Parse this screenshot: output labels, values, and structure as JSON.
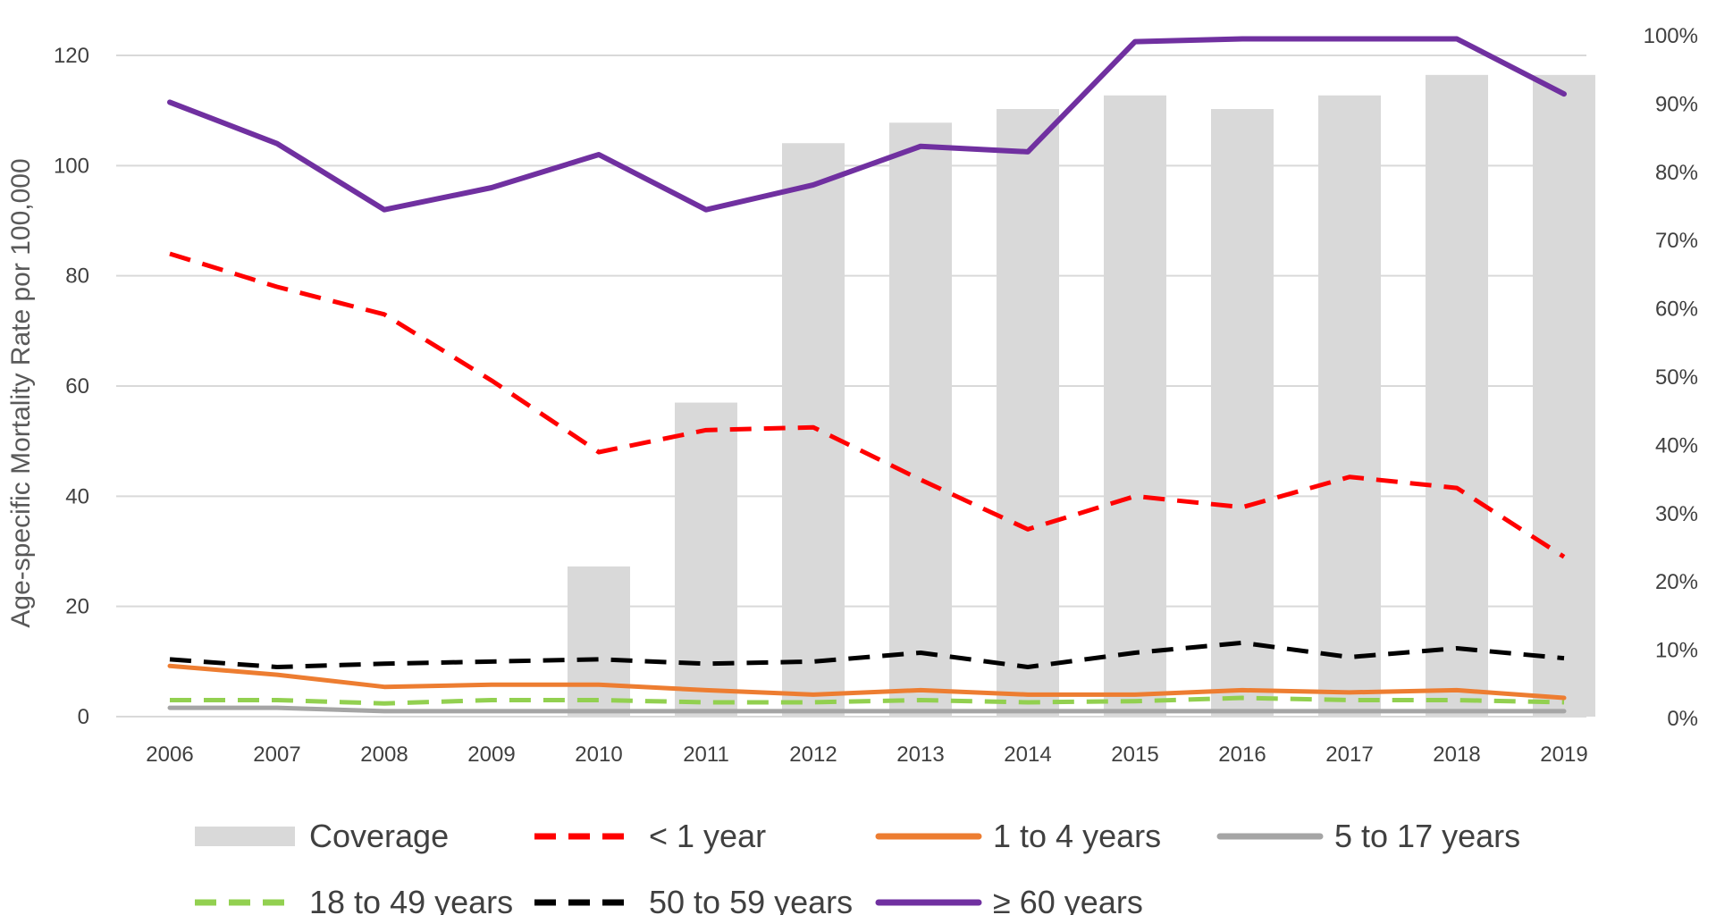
{
  "chart_data": {
    "type": "line",
    "title": "",
    "xlabel": "",
    "ylabel": "Age-specific Mortality Rate por 100,000",
    "x": [
      "2006",
      "2007",
      "2008",
      "2009",
      "2010",
      "2011",
      "2012",
      "2013",
      "2014",
      "2015",
      "2016",
      "2017",
      "2018",
      "2019"
    ],
    "ylim": [
      0,
      120
    ],
    "yticks": [
      "0",
      "20",
      "40",
      "60",
      "80",
      "100",
      "120"
    ],
    "y2lim": [
      0,
      1.0
    ],
    "y2ticks": [
      "0%",
      "10%",
      "20%",
      "30%",
      "40%",
      "50%",
      "60%",
      "70%",
      "80%",
      "90%",
      "100%"
    ],
    "grid": true,
    "legend_position": "bottom",
    "bars": {
      "name": "Coverage",
      "axis": "right",
      "color": "#d9d9d9",
      "values": [
        null,
        null,
        null,
        null,
        0.22,
        0.46,
        0.84,
        0.87,
        0.89,
        0.91,
        0.89,
        0.91,
        0.94,
        0.94
      ]
    },
    "series": [
      {
        "name": "< 1 year",
        "color": "#ff0000",
        "dashed": true,
        "values": [
          84,
          78,
          73,
          61,
          48,
          52,
          52.5,
          43,
          34,
          40,
          38,
          43.5,
          41.5,
          29
        ]
      },
      {
        "name": "1 to 4 years",
        "color": "#ed7d31",
        "dashed": false,
        "values": [
          9.2,
          7.6,
          5.4,
          5.8,
          5.8,
          4.8,
          4.0,
          4.8,
          4.0,
          4.0,
          4.8,
          4.4,
          4.8,
          3.4
        ]
      },
      {
        "name": "5 to 17 years",
        "color": "#a5a5a5",
        "dashed": false,
        "values": [
          1.6,
          1.6,
          1.0,
          1.0,
          1.0,
          1.0,
          1.0,
          1.0,
          1.0,
          1.0,
          1.0,
          1.0,
          1.0,
          1.0
        ]
      },
      {
        "name": "18 to 49 years",
        "color": "#92d050",
        "dashed": true,
        "values": [
          3.0,
          3.0,
          2.4,
          3.0,
          3.0,
          2.6,
          2.6,
          3.0,
          2.6,
          2.8,
          3.4,
          3.0,
          3.0,
          2.6
        ]
      },
      {
        "name": "50 to 59 years",
        "color": "#000000",
        "dashed": true,
        "values": [
          10.4,
          9.0,
          9.6,
          10.0,
          10.4,
          9.6,
          10.0,
          11.6,
          9.0,
          11.6,
          13.4,
          10.8,
          12.4,
          10.6
        ]
      },
      {
        "name": "≥ 60 years",
        "color": "#7030a0",
        "dashed": false,
        "values": [
          111.5,
          104,
          92,
          96,
          102,
          92,
          96.5,
          103.5,
          102.5,
          122.5,
          123,
          123,
          123,
          113
        ]
      }
    ]
  }
}
